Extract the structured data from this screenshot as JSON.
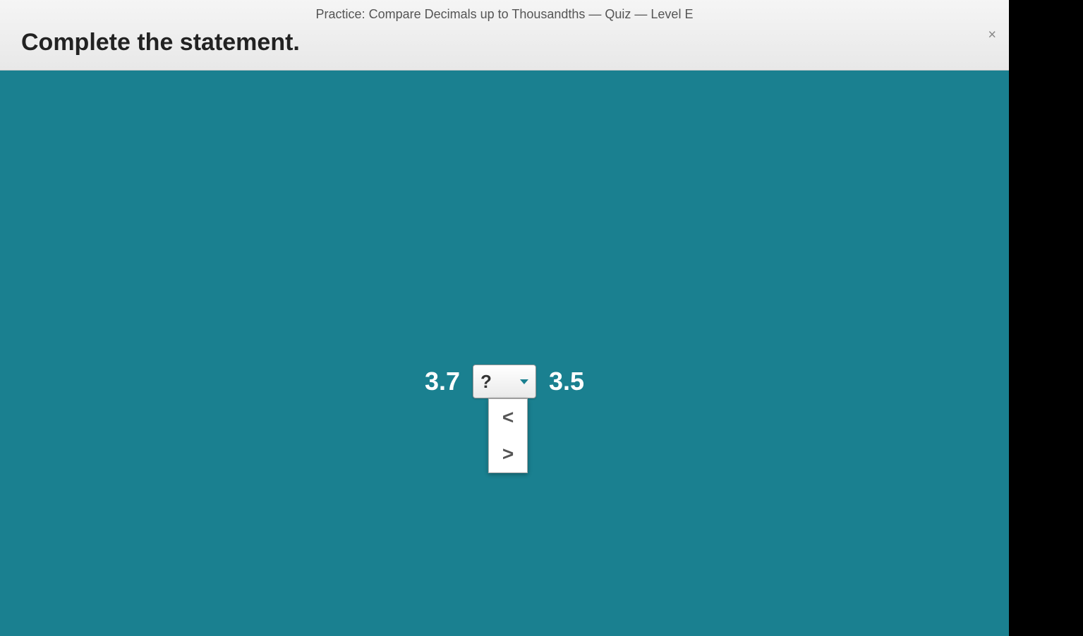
{
  "header": {
    "breadcrumb": "Practice: Compare Decimals up to Thousandths — Quiz — Level E",
    "instruction": "Complete the statement.",
    "close_label": "×"
  },
  "comparison": {
    "left_value": "3.7",
    "right_value": "3.5",
    "selected": "?",
    "options": [
      "<",
      ">"
    ]
  },
  "colors": {
    "content_bg": "#1a8090",
    "header_bg_top": "#f5f5f5",
    "header_bg_bottom": "#e8e8e8",
    "text_dark": "#222222",
    "text_medium": "#555555",
    "text_white": "#ffffff",
    "dropdown_bg": "#ffffff",
    "dropdown_border": "#999999",
    "caret_color": "#1a8090"
  },
  "typography": {
    "breadcrumb_size": 18,
    "instruction_size": 34,
    "number_size": 36,
    "dropdown_value_size": 26,
    "option_size": 28
  }
}
